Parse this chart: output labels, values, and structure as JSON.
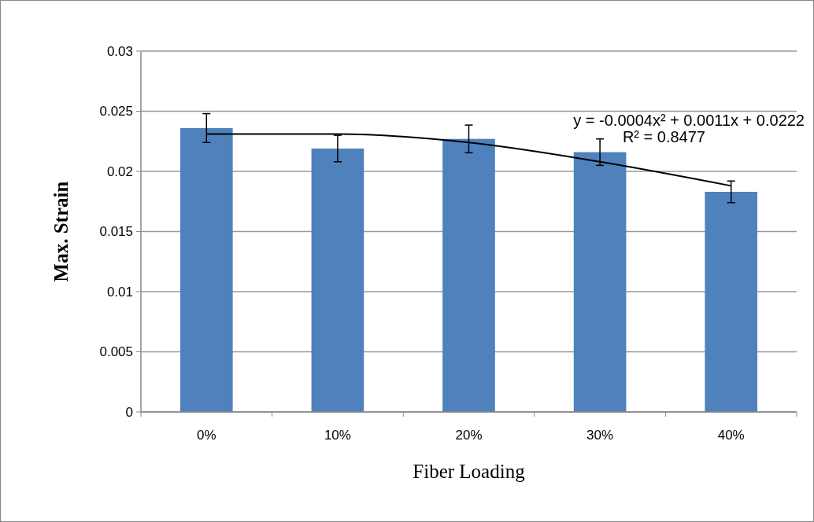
{
  "chart_data": {
    "type": "bar",
    "xlabel": "Fiber Loading",
    "ylabel": "Max. Strain",
    "categories": [
      "0%",
      "10%",
      "20%",
      "30%",
      "40%"
    ],
    "series": [
      {
        "color": "#4f81bd",
        "values": [
          0.0236,
          0.0219,
          0.0227,
          0.0216,
          0.0183
        ],
        "errors": [
          0.0012,
          0.0011,
          0.00115,
          0.0011,
          0.0009
        ]
      },
      {
        "type": "line",
        "color": "#000000",
        "values": [
          0.0231,
          0.0231,
          0.0224,
          0.0208,
          0.0188
        ]
      }
    ],
    "ylim": [
      0,
      0.03
    ],
    "yticks": [
      0,
      {
        "value": 0.005,
        "label": "0.005"
      },
      {
        "value": 0.01,
        "label": "0.01"
      },
      {
        "value": 0.015,
        "label": "0.015"
      },
      {
        "value": 0.02,
        "label": "0.02"
      },
      {
        "value": 0.025,
        "label": "0.025"
      },
      {
        "value": 0.03,
        "label": "0.03"
      }
    ],
    "grid": "y",
    "annotations": [
      "y = -0.0004x² + 0.0011x + 0.0222",
      "R² = 0.8477"
    ]
  }
}
